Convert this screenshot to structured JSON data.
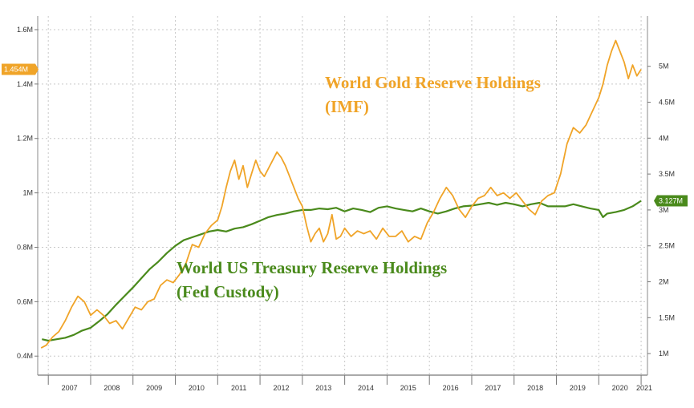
{
  "chart_data": {
    "type": "line",
    "title": "",
    "xlabel": "",
    "ylabel_left": "",
    "ylabel_right": "",
    "x_ticks": [
      "2007",
      "2008",
      "2009",
      "2010",
      "2011",
      "2012",
      "2013",
      "2014",
      "2015",
      "2016",
      "2017",
      "2018",
      "2019",
      "2020",
      "2021"
    ],
    "x_range": [
      2006.75,
      2021.15
    ],
    "left_axis": {
      "ylim": [
        0.33,
        1.65
      ],
      "tick_values": [
        0.4,
        0.6,
        0.8,
        1.0,
        1.2,
        1.4,
        1.6
      ],
      "tick_labels": [
        "0.4M",
        "0.6M",
        "0.8M",
        "1M",
        "1.2M",
        "1.4M",
        "1.6M"
      ]
    },
    "right_axis": {
      "ylim": [
        0.7,
        5.7
      ],
      "tick_values": [
        1,
        1.5,
        2,
        2.5,
        3,
        3.5,
        4,
        4.5,
        5
      ],
      "tick_labels": [
        "1M",
        "1.5M",
        "2M",
        "2.5M",
        "3M",
        "3.5M",
        "4M",
        "4.5M",
        "5M"
      ]
    },
    "series": [
      {
        "name": "World Gold Reserve Holdings (IMF)",
        "axis": "left",
        "color": "#f0a428",
        "last_value_label": "1.454M",
        "x": [
          2006.83,
          2006.95,
          2007.1,
          2007.25,
          2007.4,
          2007.55,
          2007.7,
          2007.85,
          2008.0,
          2008.15,
          2008.3,
          2008.45,
          2008.6,
          2008.75,
          2008.9,
          2009.05,
          2009.2,
          2009.35,
          2009.5,
          2009.65,
          2009.8,
          2009.95,
          2010.1,
          2010.25,
          2010.4,
          2010.55,
          2010.7,
          2010.85,
          2011.0,
          2011.1,
          2011.2,
          2011.3,
          2011.4,
          2011.5,
          2011.6,
          2011.7,
          2011.8,
          2011.9,
          2012.0,
          2012.1,
          2012.2,
          2012.3,
          2012.4,
          2012.5,
          2012.6,
          2012.7,
          2012.8,
          2012.9,
          2013.0,
          2013.1,
          2013.2,
          2013.3,
          2013.4,
          2013.5,
          2013.6,
          2013.7,
          2013.8,
          2013.9,
          2014.0,
          2014.15,
          2014.3,
          2014.45,
          2014.6,
          2014.75,
          2014.9,
          2015.05,
          2015.2,
          2015.35,
          2015.5,
          2015.65,
          2015.8,
          2015.95,
          2016.1,
          2016.25,
          2016.4,
          2016.55,
          2016.7,
          2016.85,
          2017.0,
          2017.15,
          2017.3,
          2017.45,
          2017.6,
          2017.75,
          2017.9,
          2018.05,
          2018.2,
          2018.35,
          2018.5,
          2018.65,
          2018.8,
          2018.95,
          2019.1,
          2019.25,
          2019.4,
          2019.55,
          2019.7,
          2019.85,
          2020.0,
          2020.1,
          2020.2,
          2020.3,
          2020.4,
          2020.5,
          2020.6,
          2020.7,
          2020.8,
          2020.9,
          2021.0
        ],
        "values": [
          0.43,
          0.44,
          0.47,
          0.49,
          0.53,
          0.58,
          0.62,
          0.6,
          0.55,
          0.57,
          0.55,
          0.52,
          0.53,
          0.5,
          0.54,
          0.58,
          0.57,
          0.6,
          0.61,
          0.66,
          0.68,
          0.67,
          0.7,
          0.74,
          0.81,
          0.8,
          0.85,
          0.88,
          0.9,
          0.95,
          1.02,
          1.08,
          1.12,
          1.05,
          1.1,
          1.02,
          1.07,
          1.12,
          1.08,
          1.06,
          1.09,
          1.12,
          1.15,
          1.13,
          1.1,
          1.06,
          1.02,
          0.98,
          0.95,
          0.88,
          0.82,
          0.85,
          0.87,
          0.82,
          0.85,
          0.92,
          0.83,
          0.84,
          0.87,
          0.84,
          0.86,
          0.85,
          0.86,
          0.83,
          0.87,
          0.84,
          0.84,
          0.86,
          0.82,
          0.84,
          0.83,
          0.89,
          0.93,
          0.98,
          1.02,
          0.99,
          0.94,
          0.91,
          0.95,
          0.98,
          0.99,
          1.02,
          0.99,
          1.0,
          0.98,
          1.0,
          0.97,
          0.94,
          0.92,
          0.97,
          0.99,
          1.0,
          1.07,
          1.18,
          1.24,
          1.22,
          1.25,
          1.3,
          1.35,
          1.4,
          1.47,
          1.52,
          1.56,
          1.52,
          1.48,
          1.42,
          1.47,
          1.43,
          1.454
        ]
      },
      {
        "name": "World US Treasury Reserve Holdings (Fed Custody)",
        "axis": "right",
        "color": "#4a8a1c",
        "last_value_label": "3.127M",
        "x": [
          2006.85,
          2007.0,
          2007.2,
          2007.4,
          2007.6,
          2007.8,
          2008.0,
          2008.2,
          2008.4,
          2008.6,
          2008.8,
          2009.0,
          2009.2,
          2009.4,
          2009.6,
          2009.8,
          2010.0,
          2010.2,
          2010.4,
          2010.6,
          2010.8,
          2011.0,
          2011.2,
          2011.4,
          2011.6,
          2011.8,
          2012.0,
          2012.2,
          2012.4,
          2012.6,
          2012.8,
          2013.0,
          2013.2,
          2013.4,
          2013.6,
          2013.8,
          2014.0,
          2014.2,
          2014.4,
          2014.6,
          2014.8,
          2015.0,
          2015.2,
          2015.4,
          2015.6,
          2015.8,
          2016.0,
          2016.2,
          2016.4,
          2016.6,
          2016.8,
          2017.0,
          2017.2,
          2017.4,
          2017.6,
          2017.8,
          2018.0,
          2018.2,
          2018.4,
          2018.6,
          2018.8,
          2019.0,
          2019.2,
          2019.4,
          2019.6,
          2019.8,
          2020.0,
          2020.1,
          2020.2,
          2020.4,
          2020.6,
          2020.8,
          2021.0
        ],
        "values": [
          1.2,
          1.18,
          1.2,
          1.22,
          1.26,
          1.32,
          1.36,
          1.45,
          1.55,
          1.68,
          1.8,
          1.92,
          2.05,
          2.18,
          2.28,
          2.4,
          2.5,
          2.58,
          2.62,
          2.66,
          2.7,
          2.72,
          2.7,
          2.74,
          2.76,
          2.8,
          2.85,
          2.9,
          2.93,
          2.95,
          2.98,
          3.0,
          3.0,
          3.02,
          3.01,
          3.03,
          2.98,
          3.02,
          3.0,
          2.97,
          3.03,
          3.05,
          3.02,
          3.0,
          2.98,
          3.02,
          2.98,
          2.95,
          2.98,
          3.02,
          3.05,
          3.06,
          3.08,
          3.1,
          3.07,
          3.1,
          3.08,
          3.05,
          3.08,
          3.1,
          3.05,
          3.05,
          3.05,
          3.08,
          3.05,
          3.02,
          3.0,
          2.9,
          2.95,
          2.97,
          3.0,
          3.05,
          3.127
        ]
      }
    ],
    "annotations": [
      {
        "series": 0,
        "lines": [
          "World Gold Reserve Holdings",
          "(IMF)"
        ]
      },
      {
        "series": 1,
        "lines": [
          "World US Treasury Reserve Holdings",
          "(Fed Custody)"
        ]
      }
    ]
  }
}
